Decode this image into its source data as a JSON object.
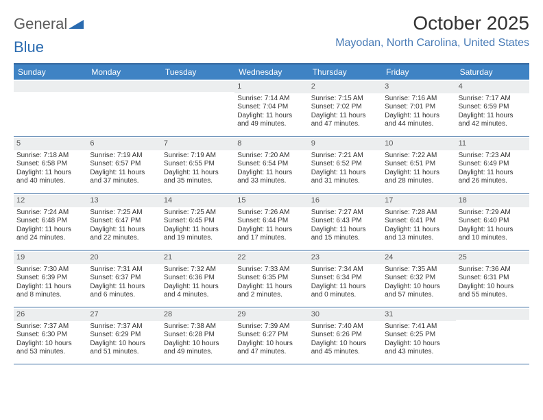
{
  "brand": {
    "part1": "General",
    "part2": "Blue",
    "accent_color": "#2a6bb0"
  },
  "title": "October 2025",
  "location": "Mayodan, North Carolina, United States",
  "colors": {
    "header_bg": "#3f83c4",
    "header_text": "#ffffff",
    "rule": "#35689f",
    "daynum_bg": "#eceeef",
    "location_color": "#4679b5"
  },
  "typography": {
    "title_fontsize": 28,
    "location_fontsize": 16,
    "dow_fontsize": 12,
    "body_fontsize": 10
  },
  "days_of_week": [
    "Sunday",
    "Monday",
    "Tuesday",
    "Wednesday",
    "Thursday",
    "Friday",
    "Saturday"
  ],
  "weeks": [
    [
      null,
      null,
      null,
      {
        "n": "1",
        "sr": "Sunrise: 7:14 AM",
        "ss": "Sunset: 7:04 PM",
        "d1": "Daylight: 11 hours",
        "d2": "and 49 minutes."
      },
      {
        "n": "2",
        "sr": "Sunrise: 7:15 AM",
        "ss": "Sunset: 7:02 PM",
        "d1": "Daylight: 11 hours",
        "d2": "and 47 minutes."
      },
      {
        "n": "3",
        "sr": "Sunrise: 7:16 AM",
        "ss": "Sunset: 7:01 PM",
        "d1": "Daylight: 11 hours",
        "d2": "and 44 minutes."
      },
      {
        "n": "4",
        "sr": "Sunrise: 7:17 AM",
        "ss": "Sunset: 6:59 PM",
        "d1": "Daylight: 11 hours",
        "d2": "and 42 minutes."
      }
    ],
    [
      {
        "n": "5",
        "sr": "Sunrise: 7:18 AM",
        "ss": "Sunset: 6:58 PM",
        "d1": "Daylight: 11 hours",
        "d2": "and 40 minutes."
      },
      {
        "n": "6",
        "sr": "Sunrise: 7:19 AM",
        "ss": "Sunset: 6:57 PM",
        "d1": "Daylight: 11 hours",
        "d2": "and 37 minutes."
      },
      {
        "n": "7",
        "sr": "Sunrise: 7:19 AM",
        "ss": "Sunset: 6:55 PM",
        "d1": "Daylight: 11 hours",
        "d2": "and 35 minutes."
      },
      {
        "n": "8",
        "sr": "Sunrise: 7:20 AM",
        "ss": "Sunset: 6:54 PM",
        "d1": "Daylight: 11 hours",
        "d2": "and 33 minutes."
      },
      {
        "n": "9",
        "sr": "Sunrise: 7:21 AM",
        "ss": "Sunset: 6:52 PM",
        "d1": "Daylight: 11 hours",
        "d2": "and 31 minutes."
      },
      {
        "n": "10",
        "sr": "Sunrise: 7:22 AM",
        "ss": "Sunset: 6:51 PM",
        "d1": "Daylight: 11 hours",
        "d2": "and 28 minutes."
      },
      {
        "n": "11",
        "sr": "Sunrise: 7:23 AM",
        "ss": "Sunset: 6:49 PM",
        "d1": "Daylight: 11 hours",
        "d2": "and 26 minutes."
      }
    ],
    [
      {
        "n": "12",
        "sr": "Sunrise: 7:24 AM",
        "ss": "Sunset: 6:48 PM",
        "d1": "Daylight: 11 hours",
        "d2": "and 24 minutes."
      },
      {
        "n": "13",
        "sr": "Sunrise: 7:25 AM",
        "ss": "Sunset: 6:47 PM",
        "d1": "Daylight: 11 hours",
        "d2": "and 22 minutes."
      },
      {
        "n": "14",
        "sr": "Sunrise: 7:25 AM",
        "ss": "Sunset: 6:45 PM",
        "d1": "Daylight: 11 hours",
        "d2": "and 19 minutes."
      },
      {
        "n": "15",
        "sr": "Sunrise: 7:26 AM",
        "ss": "Sunset: 6:44 PM",
        "d1": "Daylight: 11 hours",
        "d2": "and 17 minutes."
      },
      {
        "n": "16",
        "sr": "Sunrise: 7:27 AM",
        "ss": "Sunset: 6:43 PM",
        "d1": "Daylight: 11 hours",
        "d2": "and 15 minutes."
      },
      {
        "n": "17",
        "sr": "Sunrise: 7:28 AM",
        "ss": "Sunset: 6:41 PM",
        "d1": "Daylight: 11 hours",
        "d2": "and 13 minutes."
      },
      {
        "n": "18",
        "sr": "Sunrise: 7:29 AM",
        "ss": "Sunset: 6:40 PM",
        "d1": "Daylight: 11 hours",
        "d2": "and 10 minutes."
      }
    ],
    [
      {
        "n": "19",
        "sr": "Sunrise: 7:30 AM",
        "ss": "Sunset: 6:39 PM",
        "d1": "Daylight: 11 hours",
        "d2": "and 8 minutes."
      },
      {
        "n": "20",
        "sr": "Sunrise: 7:31 AM",
        "ss": "Sunset: 6:37 PM",
        "d1": "Daylight: 11 hours",
        "d2": "and 6 minutes."
      },
      {
        "n": "21",
        "sr": "Sunrise: 7:32 AM",
        "ss": "Sunset: 6:36 PM",
        "d1": "Daylight: 11 hours",
        "d2": "and 4 minutes."
      },
      {
        "n": "22",
        "sr": "Sunrise: 7:33 AM",
        "ss": "Sunset: 6:35 PM",
        "d1": "Daylight: 11 hours",
        "d2": "and 2 minutes."
      },
      {
        "n": "23",
        "sr": "Sunrise: 7:34 AM",
        "ss": "Sunset: 6:34 PM",
        "d1": "Daylight: 11 hours",
        "d2": "and 0 minutes."
      },
      {
        "n": "24",
        "sr": "Sunrise: 7:35 AM",
        "ss": "Sunset: 6:32 PM",
        "d1": "Daylight: 10 hours",
        "d2": "and 57 minutes."
      },
      {
        "n": "25",
        "sr": "Sunrise: 7:36 AM",
        "ss": "Sunset: 6:31 PM",
        "d1": "Daylight: 10 hours",
        "d2": "and 55 minutes."
      }
    ],
    [
      {
        "n": "26",
        "sr": "Sunrise: 7:37 AM",
        "ss": "Sunset: 6:30 PM",
        "d1": "Daylight: 10 hours",
        "d2": "and 53 minutes."
      },
      {
        "n": "27",
        "sr": "Sunrise: 7:37 AM",
        "ss": "Sunset: 6:29 PM",
        "d1": "Daylight: 10 hours",
        "d2": "and 51 minutes."
      },
      {
        "n": "28",
        "sr": "Sunrise: 7:38 AM",
        "ss": "Sunset: 6:28 PM",
        "d1": "Daylight: 10 hours",
        "d2": "and 49 minutes."
      },
      {
        "n": "29",
        "sr": "Sunrise: 7:39 AM",
        "ss": "Sunset: 6:27 PM",
        "d1": "Daylight: 10 hours",
        "d2": "and 47 minutes."
      },
      {
        "n": "30",
        "sr": "Sunrise: 7:40 AM",
        "ss": "Sunset: 6:26 PM",
        "d1": "Daylight: 10 hours",
        "d2": "and 45 minutes."
      },
      {
        "n": "31",
        "sr": "Sunrise: 7:41 AM",
        "ss": "Sunset: 6:25 PM",
        "d1": "Daylight: 10 hours",
        "d2": "and 43 minutes."
      },
      null
    ]
  ]
}
